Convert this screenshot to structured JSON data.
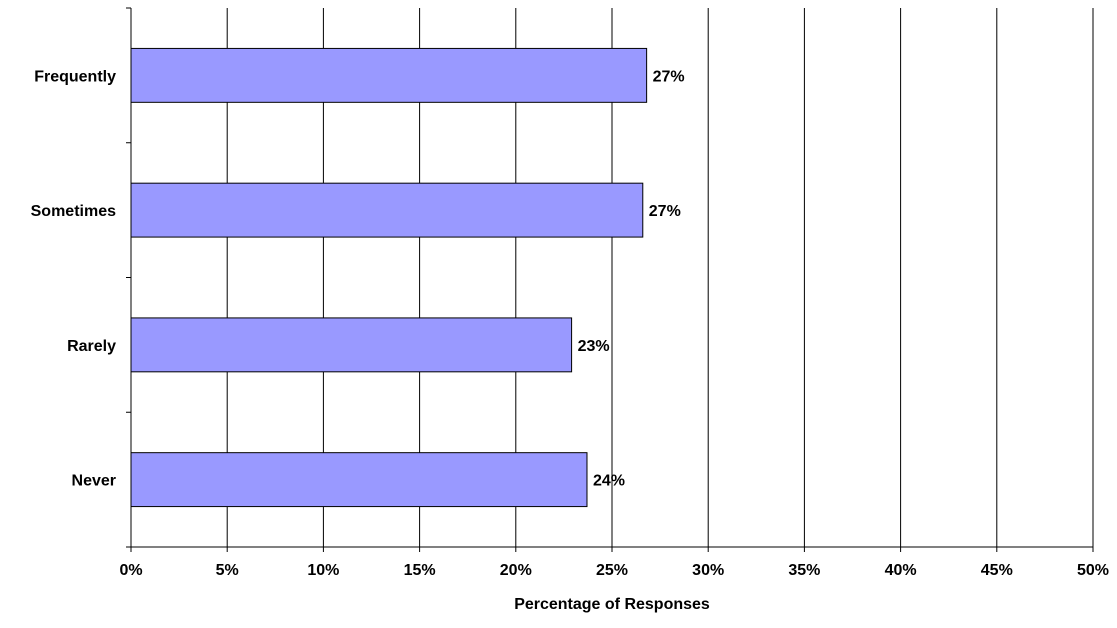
{
  "chart_data": {
    "type": "bar",
    "orientation": "horizontal",
    "categories": [
      "Frequently",
      "Sometimes",
      "Rarely",
      "Never"
    ],
    "values": [
      26.8,
      26.6,
      22.9,
      23.7
    ],
    "data_labels": [
      "27%",
      "27%",
      "23%",
      "24%"
    ],
    "xlabel": "Percentage of Responses",
    "ylabel": "",
    "title": "",
    "xlim": [
      0,
      50
    ],
    "x_ticks": [
      0,
      5,
      10,
      15,
      20,
      25,
      30,
      35,
      40,
      45,
      50
    ],
    "x_tick_labels": [
      "0%",
      "5%",
      "10%",
      "15%",
      "20%",
      "25%",
      "30%",
      "35%",
      "40%",
      "45%",
      "50%"
    ],
    "grid": "vertical",
    "legend": "none",
    "colors": {
      "bar_fill": "#9999FF",
      "bar_stroke": "#000000",
      "grid": "#000000",
      "axis": "#000000"
    }
  }
}
